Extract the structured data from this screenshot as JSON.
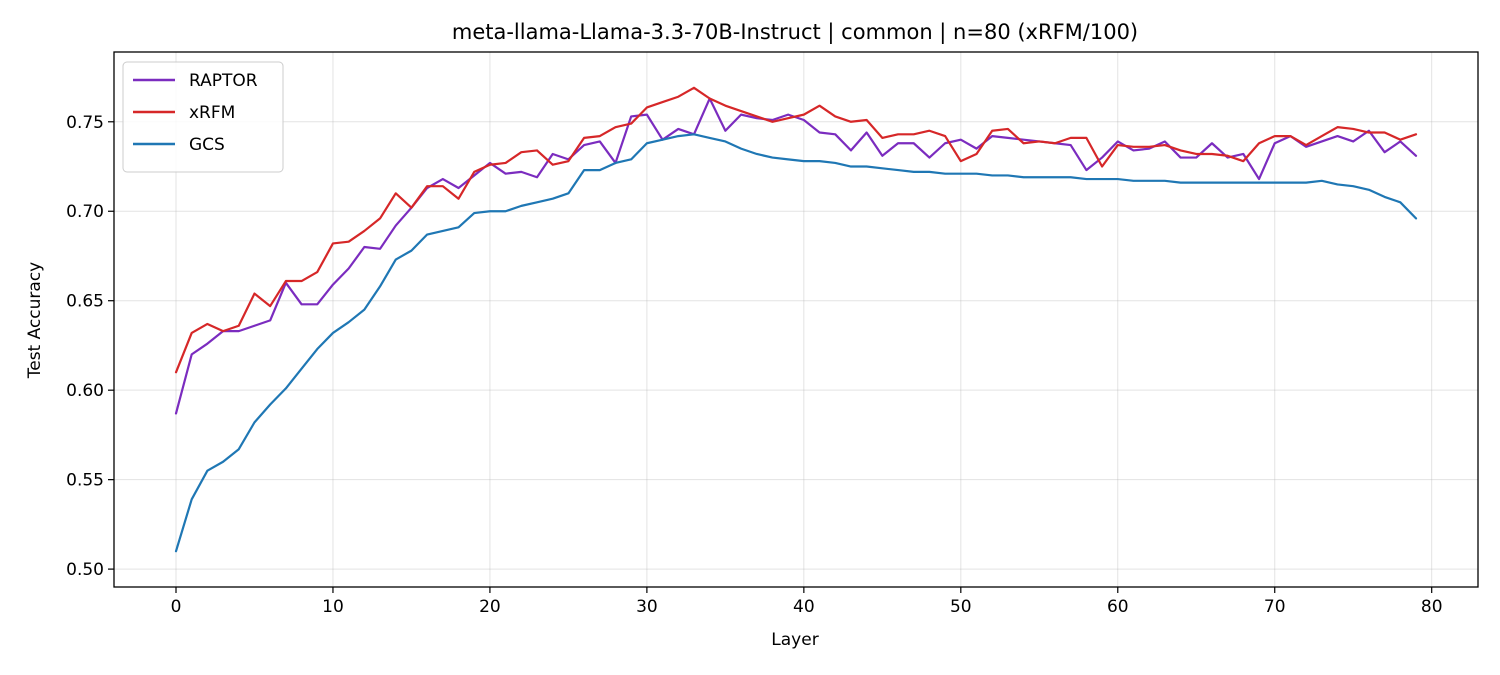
{
  "chart_data": {
    "type": "line",
    "title": "meta-llama-Llama-3.3-70B-Instruct | common | n=80 (xRFM/100)",
    "xlabel": "Layer",
    "ylabel": "Test Accuracy",
    "xlim": [
      -3.95,
      82.95
    ],
    "ylim": [
      0.49,
      0.789
    ],
    "xticks": [
      0,
      10,
      20,
      30,
      40,
      50,
      60,
      70,
      80
    ],
    "yticks": [
      0.5,
      0.55,
      0.6,
      0.65,
      0.7,
      0.75
    ],
    "grid": true,
    "legend_position": "top-left",
    "x": [
      0,
      1,
      2,
      3,
      4,
      5,
      6,
      7,
      8,
      9,
      10,
      11,
      12,
      13,
      14,
      15,
      16,
      17,
      18,
      19,
      20,
      21,
      22,
      23,
      24,
      25,
      26,
      27,
      28,
      29,
      30,
      31,
      32,
      33,
      34,
      35,
      36,
      37,
      38,
      39,
      40,
      41,
      42,
      43,
      44,
      45,
      46,
      47,
      48,
      49,
      50,
      51,
      52,
      53,
      54,
      55,
      56,
      57,
      58,
      59,
      60,
      61,
      62,
      63,
      64,
      65,
      66,
      67,
      68,
      69,
      70,
      71,
      72,
      73,
      74,
      75,
      76,
      77,
      78,
      79
    ],
    "series": [
      {
        "name": "RAPTOR",
        "color": "#7b2cbf",
        "values": [
          0.587,
          0.62,
          0.626,
          0.633,
          0.633,
          0.636,
          0.639,
          0.66,
          0.648,
          0.648,
          0.659,
          0.668,
          0.68,
          0.679,
          0.692,
          0.702,
          0.713,
          0.718,
          0.713,
          0.72,
          0.727,
          0.721,
          0.722,
          0.719,
          0.732,
          0.729,
          0.737,
          0.739,
          0.727,
          0.753,
          0.754,
          0.74,
          0.746,
          0.743,
          0.763,
          0.745,
          0.754,
          0.752,
          0.751,
          0.754,
          0.751,
          0.744,
          0.743,
          0.734,
          0.744,
          0.731,
          0.738,
          0.738,
          0.73,
          0.738,
          0.74,
          0.735,
          0.742,
          0.741,
          0.74,
          0.739,
          0.738,
          0.737,
          0.723,
          0.73,
          0.739,
          0.734,
          0.735,
          0.739,
          0.73,
          0.73,
          0.738,
          0.73,
          0.732,
          0.718,
          0.738,
          0.742,
          0.736,
          0.739,
          0.742,
          0.739,
          0.745,
          0.733,
          0.739,
          0.731
        ]
      },
      {
        "name": "xRFM",
        "color": "#d62728",
        "values": [
          0.61,
          0.632,
          0.637,
          0.633,
          0.636,
          0.654,
          0.647,
          0.661,
          0.661,
          0.666,
          0.682,
          0.683,
          0.689,
          0.696,
          0.71,
          0.702,
          0.714,
          0.714,
          0.707,
          0.722,
          0.726,
          0.727,
          0.733,
          0.734,
          0.726,
          0.728,
          0.741,
          0.742,
          0.747,
          0.749,
          0.758,
          0.761,
          0.764,
          0.769,
          0.763,
          0.759,
          0.756,
          0.753,
          0.75,
          0.752,
          0.754,
          0.759,
          0.753,
          0.75,
          0.751,
          0.741,
          0.743,
          0.743,
          0.745,
          0.742,
          0.728,
          0.732,
          0.745,
          0.746,
          0.738,
          0.739,
          0.738,
          0.741,
          0.741,
          0.725,
          0.737,
          0.736,
          0.736,
          0.737,
          0.734,
          0.732,
          0.732,
          0.731,
          0.728,
          0.738,
          0.742,
          0.742,
          0.737,
          0.742,
          0.747,
          0.746,
          0.744,
          0.744,
          0.74,
          0.743
        ]
      },
      {
        "name": "GCS",
        "color": "#1f77b4",
        "values": [
          0.51,
          0.539,
          0.555,
          0.56,
          0.567,
          0.582,
          0.592,
          0.601,
          0.612,
          0.623,
          0.632,
          0.638,
          0.645,
          0.658,
          0.673,
          0.678,
          0.687,
          0.689,
          0.691,
          0.699,
          0.7,
          0.7,
          0.703,
          0.705,
          0.707,
          0.71,
          0.723,
          0.723,
          0.727,
          0.729,
          0.738,
          0.74,
          0.742,
          0.743,
          0.741,
          0.739,
          0.735,
          0.732,
          0.73,
          0.729,
          0.728,
          0.728,
          0.727,
          0.725,
          0.725,
          0.724,
          0.723,
          0.722,
          0.722,
          0.721,
          0.721,
          0.721,
          0.72,
          0.72,
          0.719,
          0.719,
          0.719,
          0.719,
          0.718,
          0.718,
          0.718,
          0.717,
          0.717,
          0.717,
          0.716,
          0.716,
          0.716,
          0.716,
          0.716,
          0.716,
          0.716,
          0.716,
          0.716,
          0.717,
          0.715,
          0.714,
          0.712,
          0.708,
          0.705,
          0.696
        ]
      }
    ]
  }
}
